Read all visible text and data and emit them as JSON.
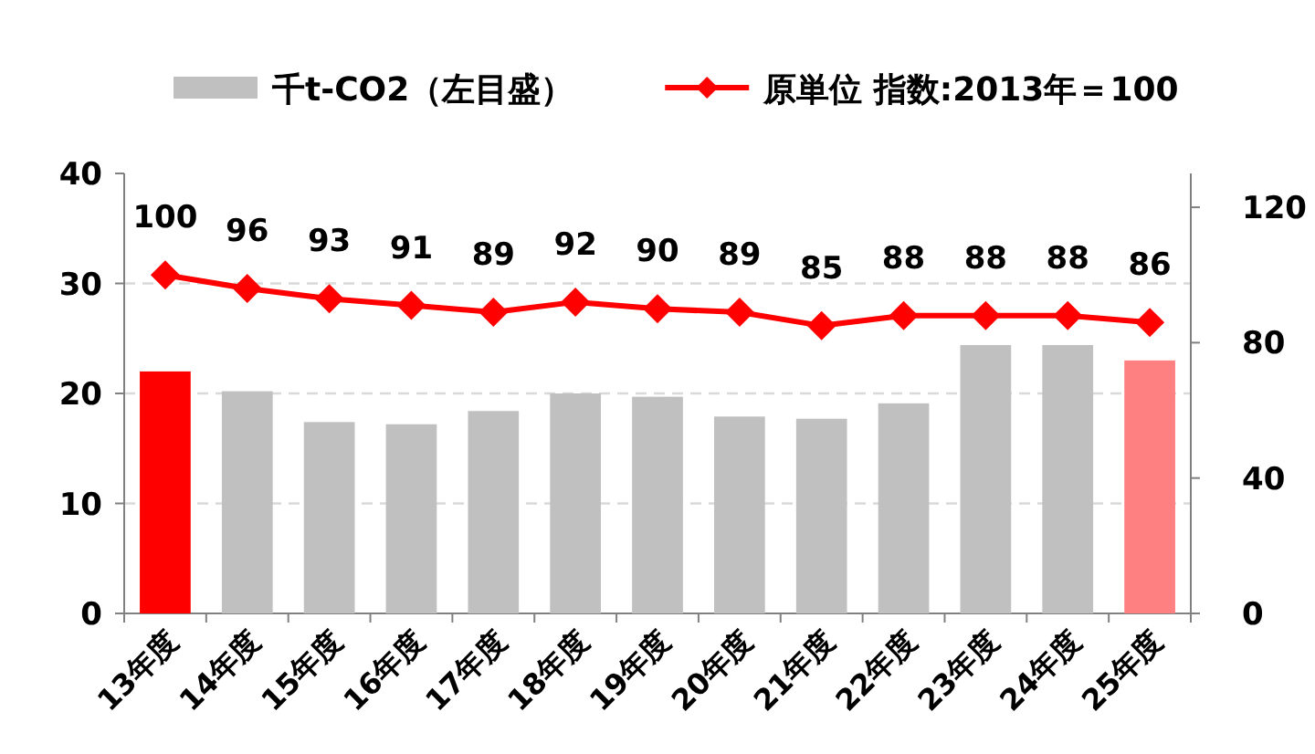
{
  "chart_data": {
    "type": "bar",
    "categories": [
      "13年度",
      "14年度",
      "15年度",
      "16年度",
      "17年度",
      "18年度",
      "19年度",
      "20年度",
      "21年度",
      "22年度",
      "23年度",
      "24年度",
      "25年度"
    ],
    "series": [
      {
        "name": "千t-CO2（左目盛）",
        "color": "#c0c0c0",
        "colors": [
          "#ff0000",
          "#c0c0c0",
          "#c0c0c0",
          "#c0c0c0",
          "#c0c0c0",
          "#c0c0c0",
          "#c0c0c0",
          "#c0c0c0",
          "#c0c0c0",
          "#c0c0c0",
          "#c0c0c0",
          "#c0c0c0",
          "#ff8080"
        ],
        "values": [
          22.0,
          20.2,
          17.4,
          17.2,
          18.4,
          20.0,
          19.7,
          17.9,
          17.7,
          19.1,
          24.4,
          24.4,
          23.0
        ]
      },
      {
        "name": "原単位 指数:2013年＝100",
        "type": "line",
        "axis": "y2",
        "color": "#ff0000",
        "marker": "diamond",
        "values": [
          100,
          96,
          93,
          91,
          89,
          92,
          90,
          89,
          85,
          88,
          88,
          88,
          86
        ],
        "value_labels": [
          "100",
          "96",
          "93",
          "91",
          "89",
          "92",
          "90",
          "89",
          "85",
          "88",
          "88",
          "88",
          "86"
        ]
      }
    ],
    "ylim": [
      0,
      40
    ],
    "yticks": [
      0,
      10,
      20,
      30,
      40
    ],
    "y2lim": [
      0,
      130
    ],
    "y2ticks": [
      0,
      40,
      80,
      120
    ],
    "grid": "y",
    "legend": "top"
  }
}
